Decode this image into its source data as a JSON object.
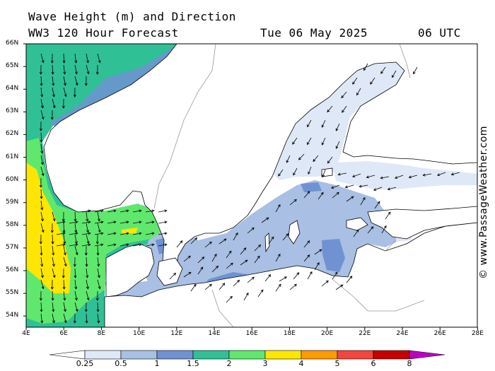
{
  "header": {
    "title": "Wave Height (m) and Direction",
    "model": "WW3 120 Hour Forecast",
    "date": "Tue 06 May 2025",
    "time": "06 UTC"
  },
  "watermark": "© www.PassageWeather.com",
  "lat_labels": [
    "66N",
    "65N",
    "64N",
    "63N",
    "62N",
    "61N",
    "60N",
    "59N",
    "58N",
    "57N",
    "56N",
    "55N",
    "54N"
  ],
  "lon_labels": [
    "4E",
    "6E",
    "8E",
    "10E",
    "12E",
    "14E",
    "16E",
    "18E",
    "20E",
    "22E",
    "24E",
    "26E",
    "28E"
  ],
  "colorbar": {
    "labels": [
      "0.25",
      "0.5",
      "1",
      "1.5",
      "2",
      "3",
      "4",
      "5",
      "6",
      "8"
    ],
    "colors": [
      "#dfe8f7",
      "#a9bfe3",
      "#6f92d2",
      "#2fc096",
      "#5fe86d",
      "#ffe600",
      "#ff9a00",
      "#f2453d",
      "#c70000",
      "#c000c0"
    ]
  },
  "colors": {
    "land": "#ffffff",
    "coast": "#000000",
    "border": "#999999"
  }
}
